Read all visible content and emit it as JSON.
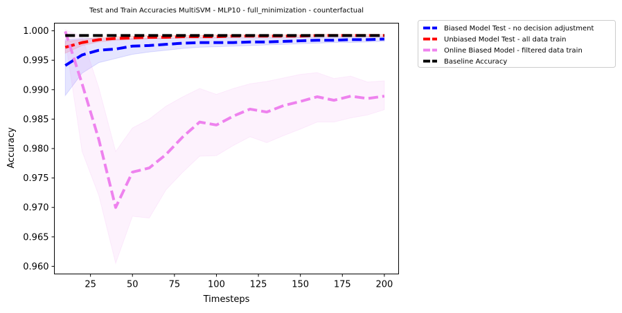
{
  "chart_data": {
    "type": "line",
    "title": "Test and Train Accuracies MultiSVM - MLP10 - full_minimization - counterfactual",
    "xlabel": "Timesteps",
    "ylabel": "Accuracy",
    "xlim": [
      3.5,
      208.5
    ],
    "ylim": [
      0.9587,
      1.0013
    ],
    "xticks": [
      25,
      50,
      75,
      100,
      125,
      150,
      175,
      200
    ],
    "yticks": [
      0.96,
      0.965,
      0.97,
      0.975,
      0.98,
      0.985,
      0.99,
      0.995,
      1.0
    ],
    "ytick_labels": [
      "0.960",
      "0.965",
      "0.970",
      "0.975",
      "0.980",
      "0.985",
      "0.990",
      "0.995",
      "1.000"
    ],
    "grid": false,
    "legend_position": "outside-upper-right",
    "x": [
      10,
      20,
      30,
      40,
      50,
      60,
      70,
      80,
      90,
      100,
      110,
      120,
      130,
      140,
      150,
      160,
      170,
      180,
      190,
      200
    ],
    "series": [
      {
        "name": "Biased Model Test - no decision adjustment",
        "color": "#0000ff",
        "style": "dashed",
        "values": [
          0.9941,
          0.9959,
          0.9967,
          0.9969,
          0.9974,
          0.9975,
          0.9977,
          0.9979,
          0.998,
          0.998,
          0.998,
          0.9981,
          0.9981,
          0.9982,
          0.9983,
          0.9984,
          0.9984,
          0.9985,
          0.9985,
          0.9986
        ],
        "lower": [
          0.989,
          0.9928,
          0.9946,
          0.9953,
          0.996,
          0.9964,
          0.9967,
          0.997,
          0.9972,
          0.9973,
          0.9974,
          0.9975,
          0.9976,
          0.9977,
          0.9978,
          0.9979,
          0.998,
          0.998,
          0.9981,
          0.9982
        ],
        "upper": [
          0.9985,
          0.9987,
          0.9987,
          0.9986,
          0.9987,
          0.9987,
          0.9987,
          0.9988,
          0.9988,
          0.9988,
          0.9988,
          0.9988,
          0.9988,
          0.9988,
          0.9989,
          0.9989,
          0.9989,
          0.999,
          0.999,
          0.999
        ]
      },
      {
        "name": "Unbiased Model Test - all data train",
        "color": "#ff0000",
        "style": "dashed",
        "values": [
          0.9972,
          0.998,
          0.9985,
          0.9987,
          0.9988,
          0.9989,
          0.9989,
          0.999,
          0.999,
          0.999,
          0.9991,
          0.9991,
          0.9991,
          0.9991,
          0.9991,
          0.9992,
          0.9992,
          0.9992,
          0.9992,
          0.9992
        ],
        "lower": [
          0.9962,
          0.9975,
          0.9981,
          0.9984,
          0.9985,
          0.9986,
          0.9987,
          0.9988,
          0.9988,
          0.9988,
          0.9989,
          0.9989,
          0.9989,
          0.9989,
          0.9989,
          0.999,
          0.999,
          0.999,
          0.999,
          0.999
        ],
        "upper": [
          0.9982,
          0.9985,
          0.9989,
          0.999,
          0.9991,
          0.9992,
          0.9992,
          0.9992,
          0.9992,
          0.9993,
          0.9993,
          0.9993,
          0.9993,
          0.9993,
          0.9993,
          0.9994,
          0.9994,
          0.9994,
          0.9994,
          0.9994
        ]
      },
      {
        "name": "Online Biased Model - filtered data train",
        "color": "#ee82ee",
        "style": "dashed",
        "values": [
          0.9999,
          0.991,
          0.9815,
          0.97,
          0.976,
          0.9767,
          0.979,
          0.982,
          0.9845,
          0.984,
          0.9855,
          0.9867,
          0.9862,
          0.9873,
          0.988,
          0.9888,
          0.9882,
          0.9889,
          0.9885,
          0.9889
        ],
        "lower": [
          0.9985,
          0.9795,
          0.972,
          0.9605,
          0.9685,
          0.9682,
          0.973,
          0.976,
          0.9787,
          0.9788,
          0.9805,
          0.982,
          0.981,
          0.9822,
          0.9833,
          0.9845,
          0.9845,
          0.9852,
          0.9857,
          0.9866
        ],
        "upper": [
          1.0002,
          0.999,
          0.9903,
          0.9795,
          0.9835,
          0.985,
          0.9872,
          0.9888,
          0.9902,
          0.9892,
          0.9902,
          0.991,
          0.9914,
          0.992,
          0.9926,
          0.9929,
          0.9919,
          0.9923,
          0.9913,
          0.9915
        ]
      },
      {
        "name": "Baseline Accuracy",
        "color": "#000000",
        "style": "dashed",
        "values": [
          0.9992,
          0.9992,
          0.9992,
          0.9992,
          0.9992,
          0.9992,
          0.9992,
          0.9992,
          0.9992,
          0.9992,
          0.9992,
          0.9992,
          0.9992,
          0.9992,
          0.9992,
          0.9992,
          0.9992,
          0.9992,
          0.9992,
          0.9992
        ]
      }
    ]
  }
}
